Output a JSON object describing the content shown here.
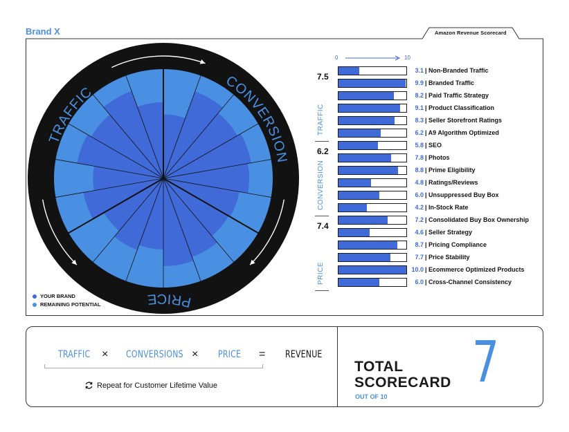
{
  "brand": "Brand X",
  "tab_title": "Amazon Revenue Scorecard",
  "legend": [
    {
      "label": "YOUR BRAND",
      "color": "#3f6ad8"
    },
    {
      "label": "REMAINING POTENTIAL",
      "color": "#4a90e2"
    }
  ],
  "wheel_labels": {
    "traffic": "TRAFFIC",
    "conversion": "CONVERSION",
    "price": "PRICE"
  },
  "scale": {
    "min": "0",
    "max": "10"
  },
  "chart_data": {
    "type": "bar",
    "xlim": [
      0,
      10
    ],
    "groups": [
      {
        "name": "TRAFFIC",
        "score": "7.5",
        "items": [
          {
            "label": "Non-Branded Traffic",
            "value": 3.1,
            "display": "3.1"
          },
          {
            "label": "Branded Traffic",
            "value": 9.9,
            "display": "9.9"
          },
          {
            "label": "Paid Traffic Strategy",
            "value": 8.2,
            "display": "8.2"
          },
          {
            "label": "Product Classification",
            "value": 9.1,
            "display": "9.1"
          },
          {
            "label": "Seller Storefront Ratings",
            "value": 8.3,
            "display": "8.3"
          },
          {
            "label": "A9 Algorithm Optimized",
            "value": 6.2,
            "display": "6.2"
          }
        ]
      },
      {
        "name": "CONVERSION",
        "score": "6.2",
        "items": [
          {
            "label": "SEO",
            "value": 5.8,
            "display": "5.8"
          },
          {
            "label": "Photos",
            "value": 7.8,
            "display": "7.8"
          },
          {
            "label": "Prime Eligibility",
            "value": 8.8,
            "display": "8.8"
          },
          {
            "label": "Ratings/Reviews",
            "value": 4.8,
            "display": "4.8"
          },
          {
            "label": "Unsuppressed Buy Box",
            "value": 6.0,
            "display": "6.0"
          },
          {
            "label": "In-Stock Rate",
            "value": 4.2,
            "display": "4.2"
          }
        ]
      },
      {
        "name": "PRICE",
        "score": "7.4",
        "items": [
          {
            "label": "Consolidated Buy Box Ownership",
            "value": 7.2,
            "display": "7.2"
          },
          {
            "label": "Seller Strategy",
            "value": 4.6,
            "display": "4.6"
          },
          {
            "label": "Pricing Compliance",
            "value": 8.7,
            "display": "8.7"
          },
          {
            "label": "Price Stability",
            "value": 7.7,
            "display": "7.7"
          },
          {
            "label": "Ecommerce Optimized Products",
            "value": 10.0,
            "display": "10.0"
          },
          {
            "label": "Cross-Channel Consistency",
            "value": 6.0,
            "display": "6.0"
          }
        ]
      }
    ]
  },
  "formula": {
    "traffic": "TRAFFIC",
    "times1": "×",
    "conversions": "CONVERSIONS",
    "times2": "×",
    "price": "PRICE",
    "equals": "=",
    "revenue": "REVENUE",
    "repeat": "Repeat for Customer Lifetime Value"
  },
  "total": {
    "line1": "TOTAL",
    "line2": "SCORECARD",
    "sub": "OUT OF 10",
    "score": "7"
  },
  "colors": {
    "fill": "#3f6ad8",
    "potential": "#4a90e2",
    "ring": "#121212",
    "accent": "#4a90e2"
  }
}
